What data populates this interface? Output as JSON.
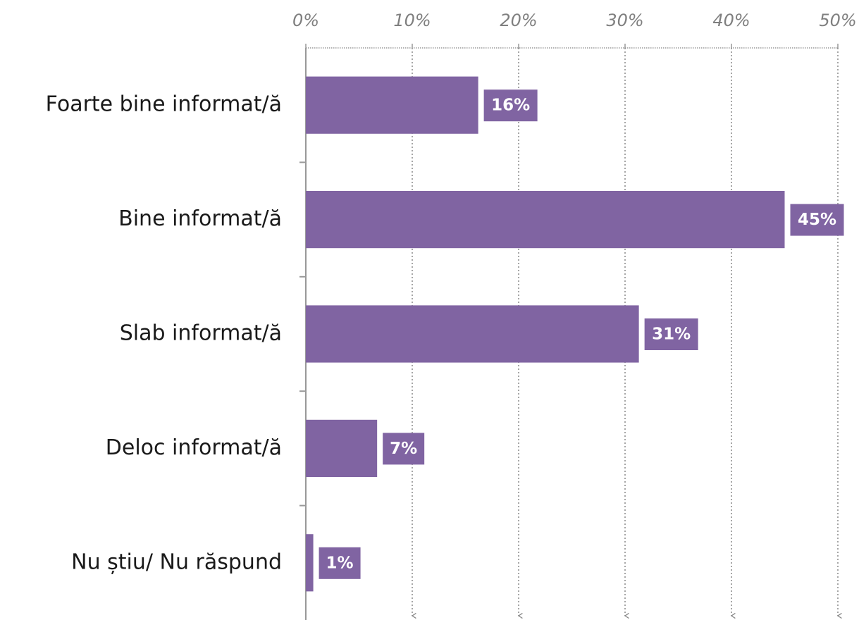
{
  "chart_data": {
    "type": "bar",
    "orientation": "horizontal",
    "categories": [
      "Foarte bine informat/ă",
      "Bine informat/ă",
      "Slab informat/ă",
      "Deloc informat/ă",
      "Nu știu/ Nu răspund"
    ],
    "values": [
      16.2,
      45,
      31.3,
      6.7,
      0.7
    ],
    "value_labels": [
      "16%",
      "45%",
      "31%",
      "7%",
      "1%"
    ],
    "color": "#8064a2",
    "xlim": [
      0,
      50
    ],
    "xticks": [
      {
        "value": 0,
        "label": "0%"
      },
      {
        "value": 10,
        "label": "10%"
      },
      {
        "value": 20,
        "label": "20%"
      },
      {
        "value": 30,
        "label": "30%"
      },
      {
        "value": 40,
        "label": "40%"
      },
      {
        "value": 50,
        "label": "50%"
      }
    ],
    "grid": true
  }
}
